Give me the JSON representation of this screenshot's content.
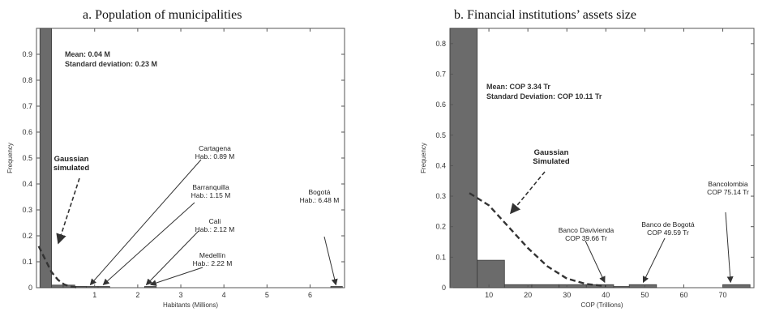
{
  "chart_data": [
    {
      "type": "bar",
      "panel": "a",
      "title": "a. Population of municipalities",
      "xlabel": "Habitants (Millions)",
      "ylabel": "Frequency",
      "xlim": [
        -0.35,
        6.8
      ],
      "ylim": [
        0,
        1.0
      ],
      "xticks": [
        1,
        2,
        3,
        4,
        5,
        6
      ],
      "yticks": [
        0,
        0.1,
        0.2,
        0.3,
        0.4,
        0.5,
        0.6,
        0.7,
        0.8,
        0.9
      ],
      "bin_width": 0.27,
      "bins": [
        {
          "x": -0.27,
          "value": 1.0
        },
        {
          "x": 0.0,
          "value": 0.01
        },
        {
          "x": 0.27,
          "value": 0.01
        },
        {
          "x": 0.54,
          "value": 0.005
        },
        {
          "x": 0.81,
          "value": 0.003
        },
        {
          "x": 1.08,
          "value": 0.002
        },
        {
          "x": 2.16,
          "value": 0.002
        },
        {
          "x": 6.48,
          "value": 0.002
        }
      ],
      "gaussian_curve": {
        "label": "Gaussian\nsimulated",
        "x": [
          -0.3,
          -0.15,
          0.0,
          0.15,
          0.3,
          0.45,
          0.6
        ],
        "y": [
          0.16,
          0.11,
          0.06,
          0.03,
          0.012,
          0.004,
          0.001
        ]
      },
      "stats": [
        "Mean: 0.04 M",
        "Standard deviation: 0.23 M"
      ],
      "annotations": [
        {
          "lines": [
            "Cartagena",
            "Hab.: 0.89 M"
          ]
        },
        {
          "lines": [
            "Barranquilla",
            "Hab.: 1.15 M"
          ]
        },
        {
          "lines": [
            "Cali",
            "Hab.: 2.12 M"
          ]
        },
        {
          "lines": [
            "Medellín",
            "Hab.: 2.22 M"
          ]
        },
        {
          "lines": [
            "Bogotá",
            "Hab.: 6.48 M"
          ]
        }
      ],
      "grid": false,
      "bar_color": "#6b6b6b"
    },
    {
      "type": "bar",
      "panel": "b",
      "title": "b. Financial institutions’ assets size",
      "xlabel": "COP (Trillions)",
      "ylabel": "Frequency",
      "xlim": [
        0,
        78
      ],
      "ylim": [
        0,
        0.85
      ],
      "xticks": [
        10,
        20,
        30,
        40,
        50,
        60,
        70
      ],
      "yticks": [
        0,
        0.1,
        0.2,
        0.3,
        0.4,
        0.5,
        0.6,
        0.7,
        0.8
      ],
      "bin_width": 7.0,
      "bins": [
        {
          "x": 0,
          "value": 0.85
        },
        {
          "x": 7,
          "value": 0.09
        },
        {
          "x": 14,
          "value": 0.01
        },
        {
          "x": 21,
          "value": 0.01
        },
        {
          "x": 28,
          "value": 0.01
        },
        {
          "x": 35,
          "value": 0.01
        },
        {
          "x": 42,
          "value": 0.0
        },
        {
          "x": 46,
          "value": 0.01
        },
        {
          "x": 70,
          "value": 0.01
        }
      ],
      "gaussian_curve": {
        "label": "Gaussian\nSimulated",
        "x": [
          5,
          10,
          15,
          20,
          25,
          30,
          35,
          40
        ],
        "y": [
          0.31,
          0.27,
          0.2,
          0.13,
          0.07,
          0.03,
          0.012,
          0.005
        ]
      },
      "stats": [
        "Mean: COP 3.34 Tr",
        "Standard Deviation: COP 10.11 Tr"
      ],
      "annotations": [
        {
          "lines": [
            "Banco Davivienda",
            "COP 39.66 Tr"
          ]
        },
        {
          "lines": [
            "Banco de Bogotá",
            "COP 49.59 Tr"
          ]
        },
        {
          "lines": [
            "Bancolombia",
            "COP 75.14 Tr"
          ]
        }
      ],
      "grid": false,
      "bar_color": "#6b6b6b"
    }
  ]
}
